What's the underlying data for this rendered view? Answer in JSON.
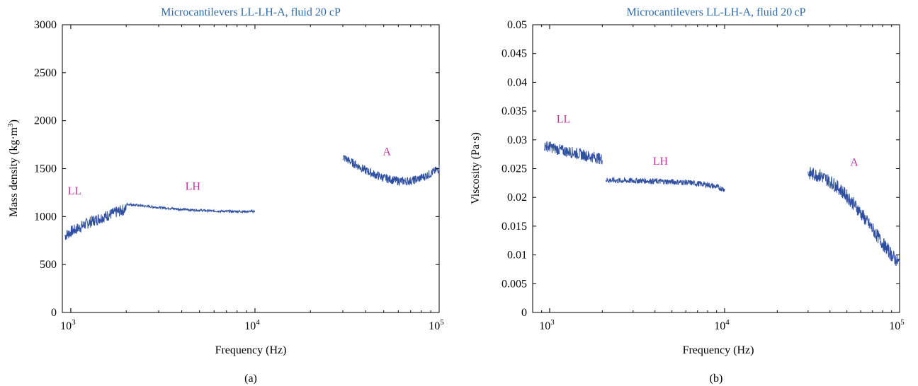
{
  "colors": {
    "line": "#2f4fa2",
    "title": "#2e6aa8",
    "label": "#c0399a",
    "axis": "#000000"
  },
  "chart_data": [
    {
      "id": "a",
      "type": "line",
      "title": "Microcantilevers LL-LH-A, fluid 20 cP",
      "xlabel": "Frequency (Hz)",
      "ylabel_main": "Mass density (kg·m",
      "ylabel_sup": "3",
      "ylabel_tail": ")",
      "caption": "(a)",
      "x_scale": "log",
      "xlim": [
        900,
        100000
      ],
      "ylim": [
        0,
        3000
      ],
      "yticks": [
        0,
        500,
        1000,
        1500,
        2000,
        2500,
        3000
      ],
      "ytick_labels": [
        "0",
        "500",
        "1000",
        "1500",
        "2000",
        "2500",
        "3000"
      ],
      "xticks": [
        1000,
        10000,
        100000
      ],
      "xtick_base": [
        "10",
        "10",
        "10"
      ],
      "xtick_exp": [
        "3",
        "4",
        "5"
      ],
      "grid": false,
      "series": [
        {
          "name": "LL",
          "label_at": [
            1050,
            1230
          ],
          "x": [
            930,
            1000,
            1100,
            1200,
            1300,
            1400,
            1500,
            1600,
            1700,
            1800,
            1900,
            2000
          ],
          "y": [
            800,
            840,
            880,
            920,
            950,
            975,
            995,
            1015,
            1035,
            1050,
            1065,
            1080
          ],
          "spread": 60
        },
        {
          "name": "LH",
          "label_at": [
            4600,
            1280
          ],
          "x": [
            2000,
            2500,
            3000,
            3500,
            4000,
            5000,
            6000,
            7000,
            8000,
            9000,
            10000
          ],
          "y": [
            1130,
            1110,
            1095,
            1085,
            1075,
            1065,
            1058,
            1055,
            1053,
            1052,
            1055
          ],
          "spread": 12
        },
        {
          "name": "A",
          "label_at": [
            52000,
            1640
          ],
          "x": [
            30000,
            35000,
            40000,
            45000,
            50000,
            55000,
            60000,
            65000,
            70000,
            75000,
            80000,
            85000,
            90000,
            95000,
            100000
          ],
          "y": [
            1620,
            1545,
            1480,
            1435,
            1405,
            1385,
            1372,
            1368,
            1372,
            1385,
            1405,
            1425,
            1450,
            1475,
            1500
          ],
          "spread": 45
        }
      ]
    },
    {
      "id": "b",
      "type": "line",
      "title": "Microcantilevers LL-LH-A, fluid 20 cP",
      "xlabel": "Frequency (Hz)",
      "ylabel_main": "Viscosity (Pa·s)",
      "ylabel_sup": "",
      "ylabel_tail": "",
      "caption": "(b)",
      "x_scale": "log",
      "xlim": [
        800,
        100000
      ],
      "ylim": [
        0,
        0.05
      ],
      "yticks": [
        0,
        0.005,
        0.01,
        0.015,
        0.02,
        0.025,
        0.03,
        0.035,
        0.04,
        0.045,
        0.05
      ],
      "ytick_labels": [
        "0",
        "0.005",
        "0.01",
        "0.015",
        "0.02",
        "0.025",
        "0.03",
        "0.035",
        "0.04",
        "0.045",
        "0.05"
      ],
      "xticks": [
        1000,
        10000,
        100000
      ],
      "xtick_base": [
        "10",
        "10",
        "10"
      ],
      "xtick_exp": [
        "3",
        "4",
        "5"
      ],
      "grid": false,
      "series": [
        {
          "name": "LL",
          "label_at": [
            1200,
            0.033
          ],
          "x": [
            930,
            1000,
            1100,
            1200,
            1300,
            1400,
            1500,
            1600,
            1700,
            1800,
            1900,
            2000
          ],
          "y": [
            0.029,
            0.0288,
            0.0284,
            0.0281,
            0.0279,
            0.0277,
            0.0275,
            0.0273,
            0.0271,
            0.027,
            0.0268,
            0.0267
          ],
          "spread": 0.001
        },
        {
          "name": "LH",
          "label_at": [
            4300,
            0.0257
          ],
          "x": [
            2100,
            2500,
            3000,
            3500,
            4000,
            5000,
            6000,
            7000,
            8000,
            9000,
            10000
          ],
          "y": [
            0.023,
            0.0229,
            0.0229,
            0.0229,
            0.0228,
            0.0227,
            0.0226,
            0.0224,
            0.0222,
            0.0218,
            0.0214
          ],
          "spread": 0.0005
        },
        {
          "name": "A",
          "label_at": [
            55000,
            0.0255
          ],
          "x": [
            30000,
            35000,
            40000,
            45000,
            50000,
            55000,
            60000,
            65000,
            70000,
            75000,
            80000,
            85000,
            90000,
            95000,
            100000
          ],
          "y": [
            0.0242,
            0.0238,
            0.0228,
            0.0216,
            0.0202,
            0.0188,
            0.0173,
            0.0158,
            0.0145,
            0.0132,
            0.012,
            0.011,
            0.01,
            0.0092,
            0.0085
          ],
          "spread": 0.0012
        }
      ]
    }
  ]
}
